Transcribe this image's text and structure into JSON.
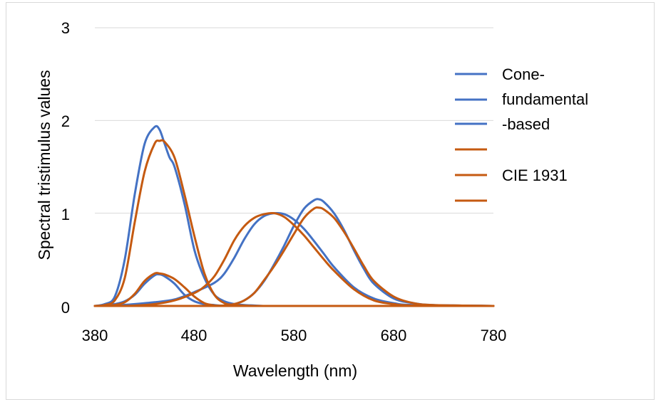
{
  "chart_data": {
    "type": "line",
    "title": "",
    "xlabel": "Wavelength (nm)",
    "ylabel": "Spectral tristimulus values",
    "xlim": [
      380,
      780
    ],
    "ylim": [
      0,
      3
    ],
    "x_ticks": [
      "380",
      "480",
      "580",
      "680",
      "780"
    ],
    "y_ticks": [
      "0",
      "1",
      "2",
      "3"
    ],
    "grid": "horizontal",
    "legend_position": "right",
    "legend_text_lines": [
      "Cone-",
      "fundamental",
      "-based",
      "",
      "CIE 1931",
      ""
    ],
    "colors": {
      "cone_fundamental_based": "#4472C4",
      "cie_1931": "#C55A11",
      "grid": "#d9d9d9"
    },
    "series": [
      {
        "group": "cone_fundamental_based",
        "x": [
          380,
          390,
          400,
          410,
          420,
          430,
          440,
          445,
          450,
          460,
          470,
          480,
          490,
          500,
          510,
          520,
          530,
          540,
          550,
          560,
          570,
          580,
          590,
          600,
          610,
          620,
          630,
          640,
          650,
          660,
          670,
          680,
          700,
          720,
          740,
          780
        ],
        "y": [
          0.0,
          0.005,
          0.02,
          0.05,
          0.12,
          0.24,
          0.33,
          0.34,
          0.32,
          0.24,
          0.12,
          0.05,
          0.02,
          0.01,
          0.0,
          0.0,
          0.0,
          0.0,
          0.0,
          0.0,
          0.0,
          0.0,
          0.0,
          0.0,
          0.0,
          0.0,
          0.0,
          0.0,
          0.0,
          0.0,
          0.0,
          0.0,
          0.0,
          0.0,
          0.0,
          0.0
        ]
      },
      {
        "group": "cone_fundamental_based",
        "x": [
          380,
          390,
          400,
          410,
          420,
          430,
          440,
          445,
          450,
          455,
          460,
          470,
          480,
          490,
          500,
          510,
          520,
          530,
          540,
          550,
          560,
          580,
          600,
          620,
          680,
          780
        ],
        "y": [
          0.0,
          0.02,
          0.1,
          0.5,
          1.2,
          1.75,
          1.93,
          1.9,
          1.75,
          1.6,
          1.5,
          1.1,
          0.6,
          0.3,
          0.12,
          0.05,
          0.02,
          0.01,
          0.005,
          0.0,
          0.0,
          0.0,
          0.0,
          0.0,
          0.0,
          0.0
        ]
      },
      {
        "group": "cone_fundamental_based",
        "x": [
          380,
          400,
          420,
          440,
          460,
          480,
          500,
          510,
          520,
          530,
          540,
          550,
          560,
          570,
          580,
          590,
          600,
          610,
          620,
          640,
          660,
          680,
          700,
          780
        ],
        "y": [
          0.0,
          0.005,
          0.02,
          0.04,
          0.07,
          0.15,
          0.25,
          0.35,
          0.52,
          0.72,
          0.88,
          0.97,
          1.0,
          0.99,
          0.93,
          0.83,
          0.7,
          0.56,
          0.42,
          0.2,
          0.08,
          0.03,
          0.01,
          0.0
        ]
      },
      {
        "group": "cone_fundamental_based",
        "x": [
          380,
          460,
          480,
          500,
          510,
          520,
          530,
          540,
          550,
          560,
          570,
          580,
          590,
          600,
          605,
          610,
          620,
          630,
          640,
          650,
          660,
          680,
          700,
          720,
          780
        ],
        "y": [
          0.0,
          0.0,
          0.0,
          0.0,
          0.005,
          0.02,
          0.06,
          0.14,
          0.27,
          0.45,
          0.65,
          0.87,
          1.05,
          1.14,
          1.15,
          1.12,
          1.0,
          0.82,
          0.6,
          0.4,
          0.24,
          0.08,
          0.03,
          0.01,
          0.0
        ]
      },
      {
        "group": "cie_1931",
        "x": [
          380,
          390,
          400,
          410,
          420,
          430,
          440,
          445,
          450,
          460,
          470,
          480,
          490,
          500,
          510,
          520,
          780
        ],
        "y": [
          0.0,
          0.002,
          0.01,
          0.04,
          0.13,
          0.27,
          0.35,
          0.35,
          0.34,
          0.29,
          0.2,
          0.1,
          0.03,
          0.005,
          0.0,
          0.0,
          0.0
        ]
      },
      {
        "group": "cie_1931",
        "x": [
          380,
          390,
          400,
          410,
          420,
          430,
          440,
          445,
          450,
          460,
          470,
          480,
          490,
          500,
          510,
          520,
          530,
          540,
          560,
          780
        ],
        "y": [
          0.0,
          0.01,
          0.06,
          0.3,
          0.9,
          1.45,
          1.75,
          1.78,
          1.77,
          1.6,
          1.2,
          0.75,
          0.35,
          0.12,
          0.03,
          0.01,
          0.004,
          0.0,
          0.0,
          0.0
        ]
      },
      {
        "group": "cie_1931",
        "x": [
          380,
          400,
          420,
          440,
          460,
          480,
          490,
          500,
          510,
          520,
          530,
          540,
          550,
          560,
          570,
          580,
          590,
          600,
          610,
          620,
          640,
          660,
          680,
          700,
          780
        ],
        "y": [
          0.0,
          0.0,
          0.004,
          0.02,
          0.06,
          0.14,
          0.21,
          0.32,
          0.5,
          0.71,
          0.86,
          0.95,
          0.99,
          1.0,
          0.96,
          0.87,
          0.76,
          0.63,
          0.5,
          0.38,
          0.18,
          0.06,
          0.02,
          0.005,
          0.0
        ]
      },
      {
        "group": "cie_1931",
        "x": [
          380,
          460,
          490,
          500,
          510,
          520,
          530,
          540,
          550,
          560,
          570,
          580,
          590,
          600,
          605,
          610,
          620,
          630,
          640,
          650,
          660,
          680,
          700,
          720,
          780
        ],
        "y": [
          0.0,
          0.0,
          0.0,
          0.0,
          0.005,
          0.02,
          0.06,
          0.14,
          0.28,
          0.43,
          0.6,
          0.78,
          0.95,
          1.05,
          1.06,
          1.04,
          0.95,
          0.8,
          0.62,
          0.43,
          0.27,
          0.1,
          0.03,
          0.01,
          0.0
        ]
      }
    ]
  }
}
